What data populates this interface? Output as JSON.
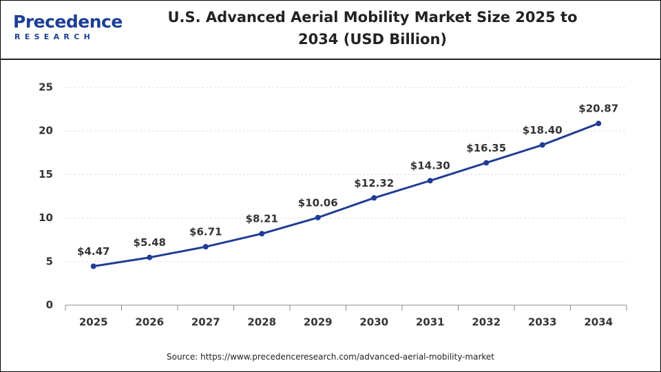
{
  "chart_data": {
    "type": "line",
    "title": "U.S. Advanced Aerial Mobility Market Size 2025 to 2034 (USD Billion)",
    "brand": "Precedence",
    "brand_tagline": "RESEARCH",
    "source": "Source: https://www.precedenceresearch.com/advanced-aerial-mobility-market",
    "categories": [
      "2025",
      "2026",
      "2027",
      "2028",
      "2029",
      "2030",
      "2031",
      "2032",
      "2033",
      "2034"
    ],
    "values": [
      4.47,
      5.48,
      6.71,
      8.21,
      10.06,
      12.32,
      14.3,
      16.35,
      18.4,
      20.87
    ],
    "value_labels": [
      "$4.47",
      "$5.48",
      "$6.71",
      "$8.21",
      "$10.06",
      "$12.32",
      "$14.30",
      "$16.35",
      "$18.40",
      "$20.87"
    ],
    "color": "#1f3c95",
    "ylim": [
      0,
      25
    ],
    "yticks": [
      0,
      5,
      10,
      15,
      20,
      25
    ],
    "grid": true
  }
}
